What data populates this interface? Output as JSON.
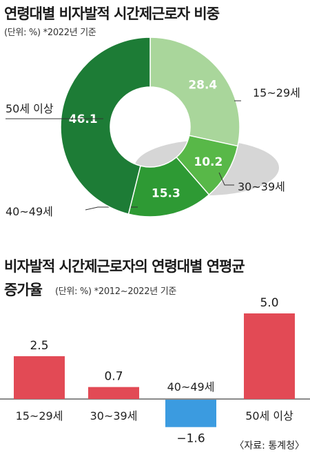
{
  "chart_data": [
    {
      "type": "pie",
      "title": "연령대별 비자발적 시간제근로자 비중",
      "subtitle": "(단위: %) *2022년 기준",
      "slices": [
        {
          "label": "15~29세",
          "value": 28.4,
          "color": "#a9d69b"
        },
        {
          "label": "30~39세",
          "value": 10.2,
          "color": "#58b848"
        },
        {
          "label": "40~49세",
          "value": 15.3,
          "color": "#2e9a34"
        },
        {
          "label": "50세 이상",
          "value": 46.1,
          "color": "#1d7c36"
        }
      ]
    },
    {
      "type": "bar",
      "title": "비자발적 시간제근로자의 연령대별 연평균",
      "title_line2": "증가율",
      "subtitle": "(단위: %) *2012~2022년 기준",
      "categories": [
        "15~29세",
        "30~39세",
        "40~49세",
        "50세 이상"
      ],
      "values": [
        2.5,
        0.7,
        -1.6,
        5.0
      ],
      "value_labels": [
        "2.5",
        "0.7",
        "−1.6",
        "5.0"
      ],
      "colors": {
        "positive": "#e24a55",
        "negative": "#3b9be0"
      }
    }
  ],
  "source": "〈자료: 통계청〉"
}
